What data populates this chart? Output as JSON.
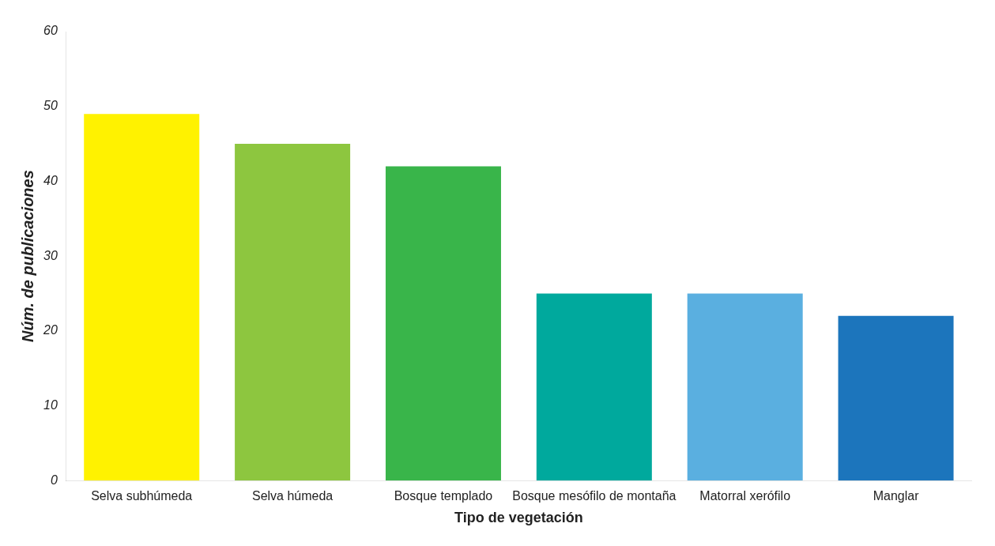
{
  "chart_data": {
    "type": "bar",
    "xlabel": "Tipo de vegetación",
    "ylabel": "Núm. de publicaciones",
    "categories": [
      "Selva subhúmeda",
      "Selva húmeda",
      "Bosque templado",
      "Bosque mesófilo de montaña",
      "Matorral xerófilo",
      "Manglar"
    ],
    "values": [
      49,
      45,
      42,
      25,
      25,
      22
    ],
    "colors": [
      "#fff200",
      "#8dc63f",
      "#39b54a",
      "#00a99d",
      "#5aafe0",
      "#1c75bc"
    ],
    "ylim": [
      0,
      60
    ],
    "yticks": [
      0,
      10,
      20,
      30,
      40,
      50,
      60
    ],
    "grid": false
  }
}
